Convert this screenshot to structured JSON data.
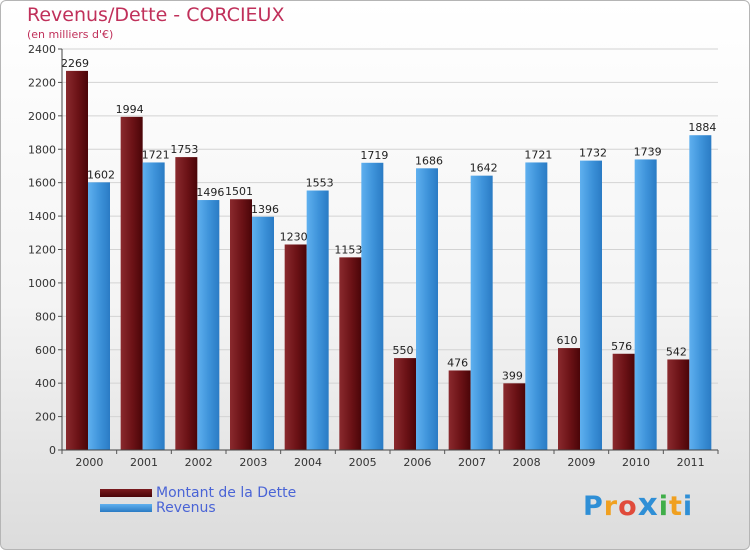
{
  "header": {
    "title": "Revenus/Dette - CORCIEUX",
    "subtitle": "(en milliers d'€)"
  },
  "legend": {
    "items": [
      {
        "label": "Montant de la Dette",
        "color": "#6a0f12"
      },
      {
        "label": "Revenus",
        "color": "#3f93d8"
      }
    ]
  },
  "logo": {
    "text": "Proxiti",
    "letters": [
      "P",
      "r",
      "o",
      "x",
      "i",
      "t",
      "i"
    ],
    "colors": [
      "#2f8fd6",
      "#f0a020",
      "#e04a3a",
      "#2f8fd6",
      "#3fae49",
      "#f0a020",
      "#2f8fd6"
    ]
  },
  "chart_data": {
    "type": "bar",
    "title": "Revenus/Dette - CORCIEUX",
    "subtitle": "(en milliers d'€)",
    "categories": [
      "2000",
      "2001",
      "2002",
      "2003",
      "2004",
      "2005",
      "2006",
      "2007",
      "2008",
      "2009",
      "2010",
      "2011"
    ],
    "series": [
      {
        "name": "Montant de la Dette",
        "color": "#6a0f12",
        "values": [
          2269,
          1994,
          1753,
          1501,
          1230,
          1153,
          550,
          476,
          399,
          610,
          576,
          542
        ]
      },
      {
        "name": "Revenus",
        "color": "#3f93d8",
        "values": [
          1602,
          1721,
          1496,
          1396,
          1553,
          1719,
          1686,
          1642,
          1721,
          1732,
          1739,
          1884
        ]
      }
    ],
    "ylim": [
      0,
      2400
    ],
    "yticks": [
      0,
      200,
      400,
      600,
      800,
      1000,
      1200,
      1400,
      1600,
      1800,
      2000,
      2200,
      2400
    ],
    "grid": true,
    "legend_position": "bottom-left"
  }
}
